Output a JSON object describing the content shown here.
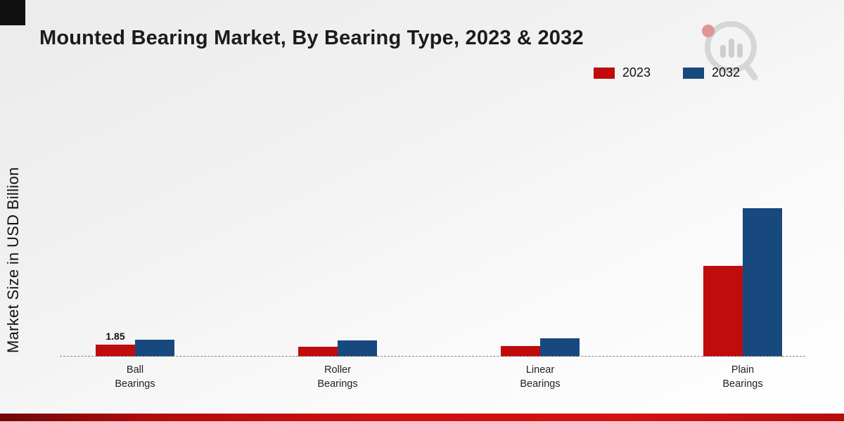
{
  "page": {
    "title": "Mounted Bearing Market, By Bearing Type, 2023 & 2032",
    "ylabel": "Market Size in USD Billion"
  },
  "chart_data": {
    "type": "bar",
    "title": "Mounted Bearing Market, By Bearing Type, 2023 & 2032",
    "xlabel": "",
    "ylabel": "Market Size in USD Billion",
    "ylim": [
      0,
      25
    ],
    "grid": false,
    "baseline_style": "dashed",
    "legend_position": "top-right",
    "categories": [
      "Ball Bearings",
      "Roller Bearings",
      "Linear Bearings",
      "Plain Bearings"
    ],
    "tick_labels": [
      "Ball\nBearings",
      "Roller\nBearings",
      "Linear\nBearings",
      "Plain\nBearings"
    ],
    "series": [
      {
        "name": "2023",
        "color": "#c00c0c",
        "values": [
          1.85,
          1.55,
          1.65,
          14.0
        ]
      },
      {
        "name": "2032",
        "color": "#17497f",
        "values": [
          2.6,
          2.45,
          2.8,
          22.9
        ]
      }
    ],
    "data_labels": [
      {
        "series": 0,
        "category": 0,
        "text": "1.85"
      }
    ]
  },
  "branding": {
    "logo_icon": "market-research-magnifier-bars-logo",
    "accent_red": "#c00c0c",
    "accent_blue": "#17497f"
  }
}
